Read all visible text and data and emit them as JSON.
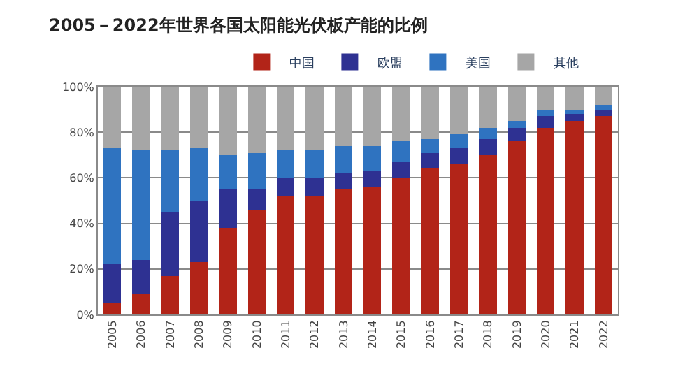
{
  "chart_data": {
    "type": "bar",
    "stacked": true,
    "title": "2005－2022年世界各国太阳能光伏板产能的比例",
    "categories": [
      "2005",
      "2006",
      "2007",
      "2008",
      "2009",
      "2010",
      "2011",
      "2012",
      "2013",
      "2014",
      "2015",
      "2016",
      "2017",
      "2018",
      "2019",
      "2020",
      "2021",
      "2022"
    ],
    "series": [
      {
        "name": "中国",
        "color": "#b22418",
        "values": [
          5,
          9,
          17,
          23,
          38,
          46,
          52,
          52,
          55,
          56,
          60,
          64,
          66,
          70,
          76,
          82,
          85,
          87
        ]
      },
      {
        "name": "欧盟",
        "color": "#2e3192",
        "values": [
          17,
          15,
          28,
          27,
          17,
          9,
          8,
          8,
          7,
          7,
          7,
          7,
          7,
          7,
          6,
          5,
          3,
          3
        ]
      },
      {
        "name": "美国",
        "color": "#2f73c0",
        "values": [
          51,
          48,
          27,
          23,
          15,
          16,
          12,
          12,
          12,
          11,
          9,
          6,
          6,
          5,
          3,
          3,
          2,
          2
        ]
      },
      {
        "name": "其他",
        "color": "#a6a6a6",
        "values": [
          27,
          28,
          28,
          27,
          30,
          29,
          28,
          28,
          26,
          26,
          24,
          23,
          21,
          18,
          15,
          10,
          10,
          8
        ]
      }
    ],
    "ylim": [
      0,
      100
    ],
    "yticks": [
      {
        "value": 0,
        "label": "0%"
      },
      {
        "value": 20,
        "label": "20%"
      },
      {
        "value": 40,
        "label": "40%"
      },
      {
        "value": 60,
        "label": "60%"
      },
      {
        "value": 80,
        "label": "80%"
      },
      {
        "value": 100,
        "label": "100%"
      }
    ],
    "grid": "y",
    "legend": "top"
  }
}
